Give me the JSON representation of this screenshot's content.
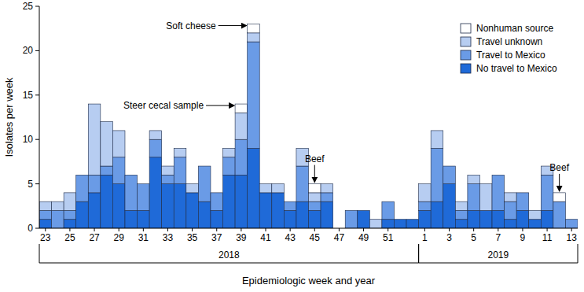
{
  "chart_data": {
    "type": "bar",
    "stacked": true,
    "grid": false,
    "legend": "top-right",
    "x_label": "Epidemiologic week and year",
    "y_label": "Isolates per week",
    "categories": [
      "23",
      null,
      "25",
      null,
      "27",
      null,
      "29",
      null,
      "31",
      null,
      "33",
      null,
      "35",
      null,
      "37",
      null,
      "39",
      null,
      "41",
      null,
      "43",
      null,
      "45",
      null,
      "47",
      null,
      "49",
      null,
      "51",
      null,
      null,
      "1",
      null,
      "3",
      null,
      "5",
      null,
      "7",
      null,
      "9",
      null,
      "11",
      null,
      "13"
    ],
    "x_groups": [
      {
        "label": "2018",
        "start": 0,
        "end": 30
      },
      {
        "label": "2019",
        "start": 31,
        "end": 43
      }
    ],
    "ylim": [
      0,
      25
    ],
    "yticks": [
      0,
      5,
      10,
      15,
      20,
      25
    ],
    "series": [
      {
        "name": "No travel to Mexico",
        "color": "#1f6ad8",
        "values": [
          1,
          0,
          1,
          3,
          4,
          6,
          5,
          2,
          2,
          8,
          5,
          5,
          4,
          3,
          2,
          6,
          6,
          9,
          4,
          4,
          2,
          3,
          2,
          3,
          0,
          0,
          2,
          0,
          1,
          1,
          1,
          2,
          3,
          5,
          1,
          2,
          2,
          2,
          1,
          2,
          1,
          2,
          0,
          0
        ]
      },
      {
        "name": "Travel to Mexico",
        "color": "#6a9be6",
        "values": [
          1,
          2,
          1,
          3,
          2,
          1,
          3,
          4,
          3,
          2,
          1,
          3,
          0,
          4,
          2,
          2,
          4,
          12,
          0,
          0,
          1,
          4,
          1,
          1,
          0,
          2,
          0,
          0,
          2,
          0,
          0,
          1,
          6,
          2,
          1,
          3,
          0,
          4,
          2,
          2,
          0,
          4,
          3,
          1
        ]
      },
      {
        "name": "Travel unknown",
        "color": "#b7cdf1",
        "values": [
          1,
          1,
          2,
          0,
          8,
          5,
          3,
          0,
          0,
          1,
          1,
          1,
          1,
          0,
          0,
          1,
          3,
          1,
          1,
          1,
          0,
          2,
          1,
          1,
          0,
          0,
          0,
          1,
          0,
          0,
          0,
          2,
          2,
          0,
          1,
          1,
          3,
          0,
          1,
          0,
          1,
          1,
          0,
          0
        ]
      },
      {
        "name": "Nonhuman source",
        "color": "#ffffff",
        "values": [
          0,
          0,
          0,
          0,
          0,
          0,
          0,
          0,
          0,
          0,
          0,
          0,
          0,
          0,
          0,
          0,
          1,
          1,
          0,
          0,
          0,
          0,
          1,
          0,
          0,
          0,
          0,
          0,
          0,
          0,
          0,
          0,
          0,
          0,
          0,
          0,
          0,
          0,
          0,
          0,
          0,
          0,
          1,
          0
        ]
      }
    ],
    "annotations": [
      {
        "text": "Soft cheese",
        "index": 17
      },
      {
        "text": "Steer cecal sample",
        "index": 16
      },
      {
        "text": "Beef",
        "index": 22
      },
      {
        "text": "Beef",
        "index": 42
      }
    ]
  }
}
